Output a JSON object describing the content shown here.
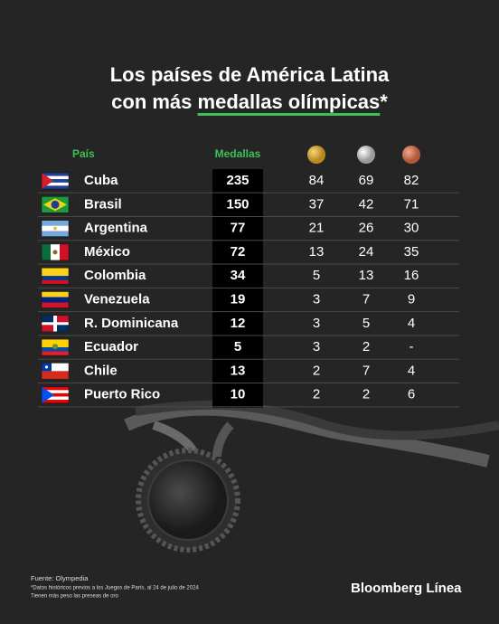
{
  "header": {
    "title_line1": "Los países de América Latina",
    "title_line2_prefix": "con más ",
    "title_highlight": "medallas olímpicas",
    "title_suffix": "*"
  },
  "table": {
    "columns": {
      "country": "País",
      "total": "Medallas"
    },
    "rows": [
      [
        "Cuba",
        235,
        84,
        69,
        82
      ],
      [
        "Brasil",
        150,
        37,
        42,
        71
      ],
      [
        "Argentina",
        77,
        21,
        26,
        30
      ],
      [
        "México",
        72,
        13,
        24,
        35
      ],
      [
        "Colombia",
        34,
        5,
        13,
        16
      ],
      [
        "Venezuela",
        19,
        3,
        7,
        9
      ],
      [
        "R. Dominicana",
        12,
        3,
        5,
        4
      ],
      [
        "Ecuador",
        5,
        3,
        2,
        "-"
      ],
      [
        "Chile",
        13,
        2,
        7,
        4
      ],
      [
        "Puerto Rico",
        10,
        2,
        2,
        6
      ]
    ]
  },
  "footer": {
    "source": "Fuente: Olympedia",
    "note": "*Datos históricos previos a los Juegos de París, al 24 de julio de 2024",
    "note2": "Tienen más peso las preseas de oro",
    "brand": "Bloomberg Línea"
  }
}
